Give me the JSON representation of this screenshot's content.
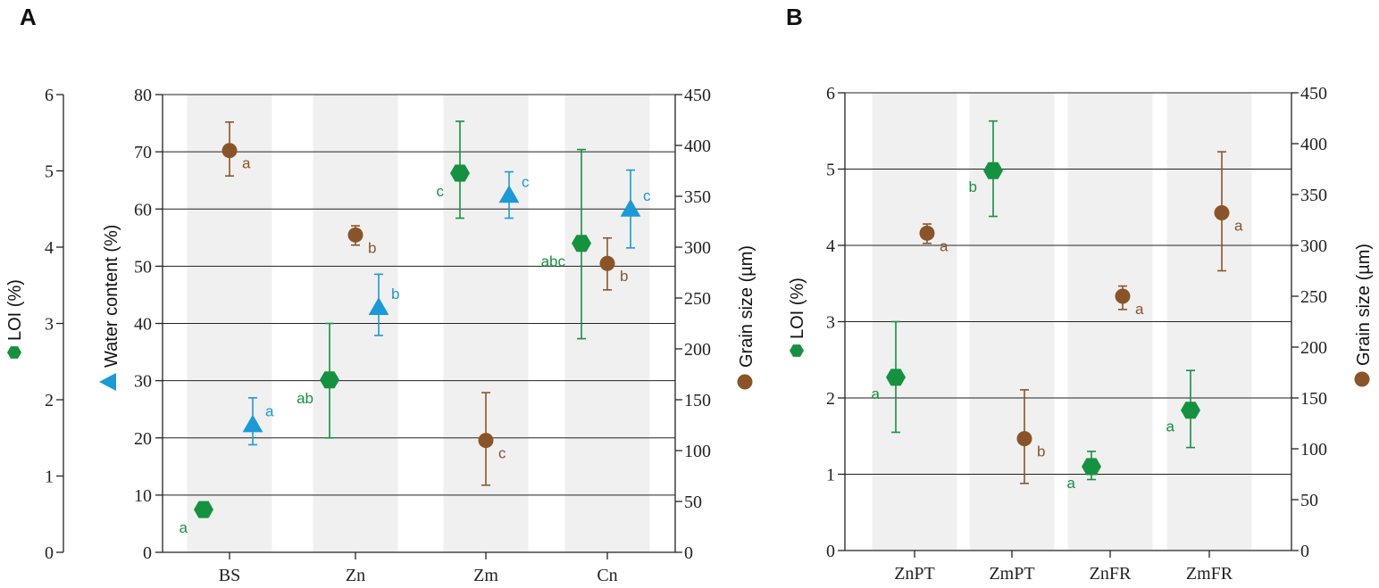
{
  "colors": {
    "loi": "#14923f",
    "water": "#1a9ad6",
    "grain": "#8b5428",
    "band": "#f0f0f0",
    "grid": "#222222",
    "axis": "#222222"
  },
  "chart_data": [
    {
      "panel": "A",
      "type": "scatter",
      "categories": [
        "BS",
        "Zn",
        "Zm",
        "Cn"
      ],
      "y_axes": {
        "loi": {
          "label": "LOI (%)",
          "range": [
            0,
            6
          ],
          "ticks": [
            "0",
            "1",
            "2",
            "3",
            "4",
            "5",
            "6"
          ]
        },
        "water": {
          "label": "Water content (%)",
          "range": [
            0,
            80
          ],
          "ticks": [
            "0",
            "10",
            "20",
            "30",
            "40",
            "50",
            "60",
            "70",
            "80"
          ]
        },
        "grain": {
          "label": "Grain size (µm)",
          "range": [
            0,
            450
          ],
          "ticks": [
            "0",
            "50",
            "100",
            "150",
            "200",
            "250",
            "300",
            "350",
            "400",
            "450"
          ]
        }
      },
      "grid": true,
      "series": [
        {
          "name": "LOI (%)",
          "axis": "loi",
          "marker": "hexagon",
          "values": [
            0.56,
            2.26,
            4.97,
            4.05
          ],
          "lower": [
            0.47,
            1.5,
            4.38,
            2.8
          ],
          "upper": [
            0.66,
            3.0,
            5.65,
            5.28
          ],
          "letters": [
            "a",
            "ab",
            "c",
            "abc"
          ]
        },
        {
          "name": "Water content (%)",
          "axis": "water",
          "marker": "triangle",
          "values": [
            22.2,
            42.7,
            62.3,
            59.9
          ],
          "lower": [
            18.8,
            37.9,
            58.4,
            53.2
          ],
          "upper": [
            27.0,
            48.6,
            66.5,
            66.8
          ],
          "letters": [
            "a",
            "b",
            "c",
            "c"
          ]
        },
        {
          "name": "Grain size (µm)",
          "axis": "grain",
          "marker": "circle",
          "values": [
            395,
            312,
            110,
            284
          ],
          "lower": [
            370,
            302,
            66,
            258
          ],
          "upper": [
            423,
            321,
            157,
            309
          ],
          "letters": [
            "a",
            "b",
            "c",
            "b"
          ]
        }
      ]
    },
    {
      "panel": "B",
      "type": "scatter",
      "categories": [
        "ZnPT",
        "ZmPT",
        "ZnFR",
        "ZmFR"
      ],
      "y_axes": {
        "loi": {
          "label": "LOI (%)",
          "range": [
            0,
            6
          ],
          "ticks": [
            "0",
            "1",
            "2",
            "3",
            "4",
            "5",
            "6"
          ]
        },
        "grain": {
          "label": "Grain size (µm)",
          "range": [
            0,
            450
          ],
          "ticks": [
            "0",
            "50",
            "100",
            "150",
            "200",
            "250",
            "300",
            "350",
            "400",
            "450"
          ]
        }
      },
      "grid": true,
      "series": [
        {
          "name": "LOI (%)",
          "axis": "loi",
          "marker": "hexagon",
          "values": [
            2.27,
            4.98,
            1.1,
            1.84
          ],
          "lower": [
            1.55,
            4.38,
            0.93,
            1.35
          ],
          "upper": [
            3.0,
            5.63,
            1.3,
            2.36
          ],
          "letters": [
            "a",
            "b",
            "a",
            "a"
          ]
        },
        {
          "name": "Grain size (µm)",
          "axis": "grain",
          "marker": "circle",
          "values": [
            312,
            110,
            250,
            332
          ],
          "lower": [
            302,
            66,
            237,
            275
          ],
          "upper": [
            321,
            158,
            260,
            392
          ],
          "letters": [
            "a",
            "b",
            "a",
            "a"
          ]
        }
      ]
    }
  ]
}
